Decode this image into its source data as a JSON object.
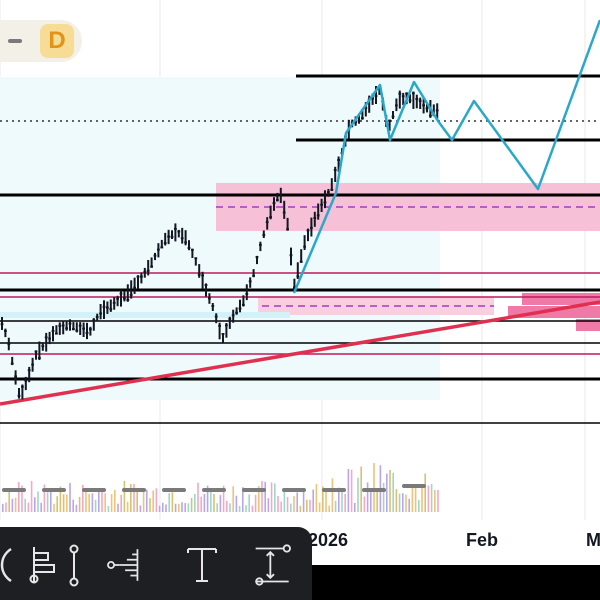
{
  "timeframe": {
    "collapse_icon": "minus-icon",
    "label": "D"
  },
  "time_axis": {
    "labels": [
      "2026",
      "Feb",
      "M"
    ]
  },
  "toolbar": {
    "tools": [
      {
        "name": "long-position-tool",
        "icon": "ruler-icon"
      },
      {
        "name": "fib-tool",
        "icon": "fib-icon"
      },
      {
        "name": "anchor-tool",
        "icon": "anchor-icon"
      },
      {
        "name": "volume-profile-tool",
        "icon": "volume-profile-icon"
      },
      {
        "name": "text-tool",
        "icon": "text-icon"
      },
      {
        "name": "measure-tool",
        "icon": "measure-icon"
      }
    ]
  },
  "colors": {
    "candle": "#131722",
    "projection": "#2aa8c9",
    "trendline": "#e03050",
    "zone": "#f6c0d6",
    "zone_dark": "#ef7aa8",
    "session": "#eefafc",
    "toolbar_bg": "#1e1f22",
    "badge_bg": "#f7dc95",
    "badge_text": "#e1941a"
  }
}
